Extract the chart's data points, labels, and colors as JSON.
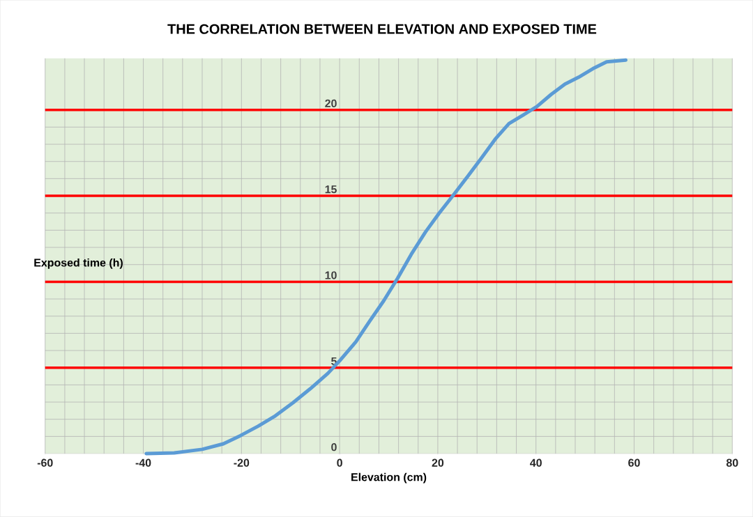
{
  "chart_data": {
    "type": "line",
    "title": "THE CORRELATION BETWEEN ELEVATION AND EXPOSED TIME",
    "xlabel": "Elevation (cm)",
    "ylabel": "Exposed time (h)",
    "xlim": [
      -60,
      80
    ],
    "xticks": [
      -60,
      -40,
      -20,
      0,
      20,
      40,
      60,
      80
    ],
    "ylim": [
      0,
      23
    ],
    "yticks": [
      0,
      5,
      10,
      15,
      20
    ],
    "grid": true,
    "ref_lines": [
      {
        "axis": "y",
        "value": 5,
        "color": "#ff0000"
      },
      {
        "axis": "y",
        "value": 10,
        "color": "#ff0000"
      },
      {
        "axis": "y",
        "value": 15,
        "color": "#ff0000"
      },
      {
        "axis": "y",
        "value": 20,
        "color": "#ff0000"
      }
    ],
    "series": [
      {
        "color": "#5b9bd5",
        "x": [
          -39.4,
          -33.7,
          -28,
          -23.7,
          -20.2,
          -16.6,
          -13.1,
          -9.5,
          -6,
          -2.4,
          0,
          3.3,
          6.1,
          9,
          11.8,
          14.6,
          17.5,
          20.3,
          23.2,
          26,
          28.9,
          31.7,
          34.5,
          37.4,
          40.2,
          43.1,
          45.9,
          48.7,
          51.6,
          54.4,
          58.3
        ],
        "values": [
          0,
          0.04,
          0.25,
          0.57,
          1.05,
          1.6,
          2.2,
          2.96,
          3.77,
          4.67,
          5.4,
          6.5,
          7.7,
          8.9,
          10.2,
          11.6,
          12.9,
          14.0,
          15.05,
          16.1,
          17.2,
          18.3,
          19.2,
          19.7,
          20.2,
          20.9,
          21.5,
          21.9,
          22.4,
          22.8,
          22.9
        ]
      }
    ]
  }
}
